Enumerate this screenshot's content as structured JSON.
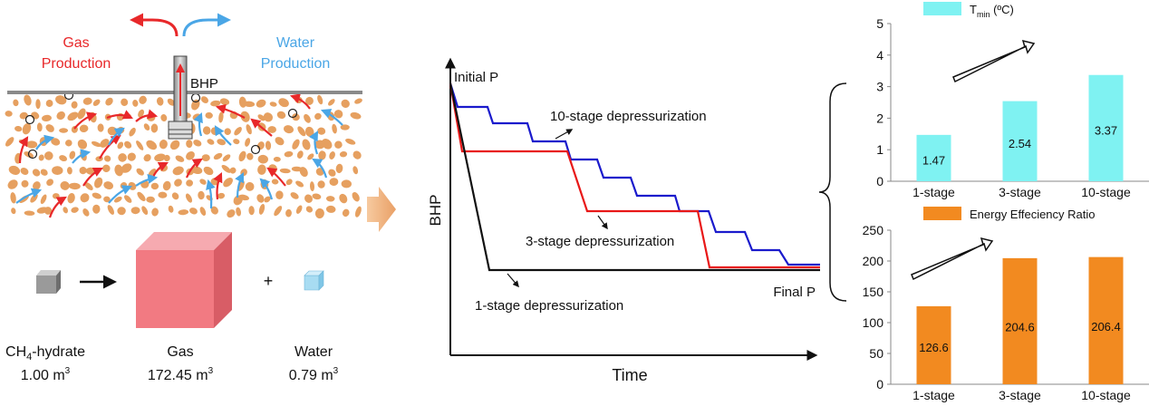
{
  "left_panel": {
    "gas_label_line1": "Gas",
    "gas_label_line2": "Production",
    "water_label_line1": "Water",
    "water_label_line2": "Production",
    "bhp_label": "BHP",
    "hydrate_label_main": "CH",
    "hydrate_label_sub": "4",
    "hydrate_label_rest": "-hydrate",
    "hydrate_volume": "1.00 m",
    "gas_label": "Gas",
    "gas_volume": "172.45 m",
    "water_label": "Water",
    "water_volume": "0.79 m",
    "volume_exponent": "3",
    "plus_sign": "+",
    "colors": {
      "gas": "#e8282a",
      "water": "#4aa6e6",
      "grain": "#e6a060",
      "gas_cube": "#f07a80",
      "water_cube": "#a8dcf2"
    }
  },
  "middle_panel": {
    "y_axis_label": "BHP",
    "x_axis_label": "Time",
    "initial_label": "Initial P",
    "final_label": "Final P",
    "label_10": "10-stage depressurization",
    "label_3": "3-stage depressurization",
    "label_1": "1-stage depressurization",
    "colors": {
      "stage10": "#1a1acc",
      "stage3": "#e81818",
      "stage1": "#111111"
    }
  },
  "chart_data": [
    {
      "type": "bar",
      "legend": "T_min (ºC)",
      "legend_main": "T",
      "legend_sub": "min",
      "legend_rest": " (ºC)",
      "categories": [
        "1-stage",
        "3-stage",
        "10-stage"
      ],
      "values": [
        1.47,
        2.54,
        3.37
      ],
      "value_labels": [
        "1.47",
        "2.54",
        "3.37"
      ],
      "ylim": [
        0,
        5
      ],
      "yticks": [
        "0",
        "1",
        "2",
        "3",
        "4",
        "5"
      ],
      "color": "#7ff2f2"
    },
    {
      "type": "bar",
      "legend": "Energy Effeciency Ratio",
      "categories": [
        "1-stage",
        "3-stage",
        "10-stage"
      ],
      "values": [
        126.6,
        204.6,
        206.4
      ],
      "value_labels": [
        "126.6",
        "204.6",
        "206.4"
      ],
      "ylim": [
        0,
        250
      ],
      "yticks": [
        "0",
        "50",
        "100",
        "150",
        "200",
        "250"
      ],
      "color": "#f28a20"
    }
  ]
}
